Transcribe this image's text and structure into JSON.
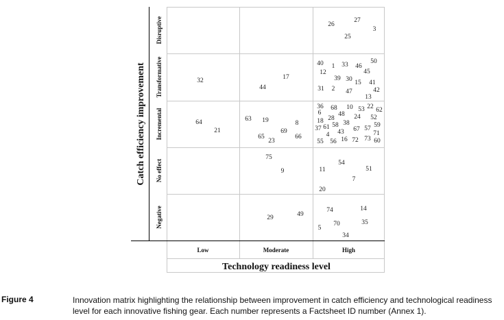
{
  "chart_data": {
    "type": "scatter",
    "ylabel": "Catch efficiency improvement",
    "xlabel": "Technology readiness level",
    "x_categories": [
      "Low",
      "Moderate",
      "High"
    ],
    "y_categories": [
      "Negative",
      "No effect",
      "Incremental",
      "Transformative",
      "Disruptive"
    ],
    "points": [
      {
        "id": "26",
        "x": "High",
        "y": "Disruptive"
      },
      {
        "id": "27",
        "x": "High",
        "y": "Disruptive"
      },
      {
        "id": "25",
        "x": "High",
        "y": "Disruptive"
      },
      {
        "id": "3",
        "x": "High",
        "y": "Disruptive"
      },
      {
        "id": "32",
        "x": "Low",
        "y": "Transformative"
      },
      {
        "id": "44",
        "x": "Moderate",
        "y": "Transformative"
      },
      {
        "id": "17",
        "x": "Moderate",
        "y": "Transformative"
      },
      {
        "id": "40",
        "x": "High",
        "y": "Transformative"
      },
      {
        "id": "1",
        "x": "High",
        "y": "Transformative"
      },
      {
        "id": "33",
        "x": "High",
        "y": "Transformative"
      },
      {
        "id": "46",
        "x": "High",
        "y": "Transformative"
      },
      {
        "id": "50",
        "x": "High",
        "y": "Transformative"
      },
      {
        "id": "12",
        "x": "High",
        "y": "Transformative"
      },
      {
        "id": "45",
        "x": "High",
        "y": "Transformative"
      },
      {
        "id": "39",
        "x": "High",
        "y": "Transformative"
      },
      {
        "id": "30",
        "x": "High",
        "y": "Transformative"
      },
      {
        "id": "15",
        "x": "High",
        "y": "Transformative"
      },
      {
        "id": "41",
        "x": "High",
        "y": "Transformative"
      },
      {
        "id": "31",
        "x": "High",
        "y": "Transformative"
      },
      {
        "id": "2",
        "x": "High",
        "y": "Transformative"
      },
      {
        "id": "47",
        "x": "High",
        "y": "Transformative"
      },
      {
        "id": "42",
        "x": "High",
        "y": "Transformative"
      },
      {
        "id": "13",
        "x": "High",
        "y": "Transformative"
      },
      {
        "id": "64",
        "x": "Low",
        "y": "Incremental"
      },
      {
        "id": "21",
        "x": "Low",
        "y": "Incremental"
      },
      {
        "id": "63",
        "x": "Moderate",
        "y": "Incremental"
      },
      {
        "id": "19",
        "x": "Moderate",
        "y": "Incremental"
      },
      {
        "id": "8",
        "x": "Moderate",
        "y": "Incremental"
      },
      {
        "id": "69",
        "x": "Moderate",
        "y": "Incremental"
      },
      {
        "id": "65",
        "x": "Moderate",
        "y": "Incremental"
      },
      {
        "id": "23",
        "x": "Moderate",
        "y": "Incremental"
      },
      {
        "id": "66",
        "x": "Moderate",
        "y": "Incremental"
      },
      {
        "id": "36",
        "x": "High",
        "y": "Incremental"
      },
      {
        "id": "68",
        "x": "High",
        "y": "Incremental"
      },
      {
        "id": "10",
        "x": "High",
        "y": "Incremental"
      },
      {
        "id": "53",
        "x": "High",
        "y": "Incremental"
      },
      {
        "id": "22",
        "x": "High",
        "y": "Incremental"
      },
      {
        "id": "62",
        "x": "High",
        "y": "Incremental"
      },
      {
        "id": "6",
        "x": "High",
        "y": "Incremental"
      },
      {
        "id": "48",
        "x": "High",
        "y": "Incremental"
      },
      {
        "id": "28",
        "x": "High",
        "y": "Incremental"
      },
      {
        "id": "24",
        "x": "High",
        "y": "Incremental"
      },
      {
        "id": "52",
        "x": "High",
        "y": "Incremental"
      },
      {
        "id": "18",
        "x": "High",
        "y": "Incremental"
      },
      {
        "id": "58",
        "x": "High",
        "y": "Incremental"
      },
      {
        "id": "38",
        "x": "High",
        "y": "Incremental"
      },
      {
        "id": "59",
        "x": "High",
        "y": "Incremental"
      },
      {
        "id": "37",
        "x": "High",
        "y": "Incremental"
      },
      {
        "id": "61",
        "x": "High",
        "y": "Incremental"
      },
      {
        "id": "43",
        "x": "High",
        "y": "Incremental"
      },
      {
        "id": "67",
        "x": "High",
        "y": "Incremental"
      },
      {
        "id": "57",
        "x": "High",
        "y": "Incremental"
      },
      {
        "id": "4",
        "x": "High",
        "y": "Incremental"
      },
      {
        "id": "71",
        "x": "High",
        "y": "Incremental"
      },
      {
        "id": "55",
        "x": "High",
        "y": "Incremental"
      },
      {
        "id": "56",
        "x": "High",
        "y": "Incremental"
      },
      {
        "id": "16",
        "x": "High",
        "y": "Incremental"
      },
      {
        "id": "72",
        "x": "High",
        "y": "Incremental"
      },
      {
        "id": "73",
        "x": "High",
        "y": "Incremental"
      },
      {
        "id": "60",
        "x": "High",
        "y": "Incremental"
      },
      {
        "id": "75",
        "x": "Moderate",
        "y": "No effect"
      },
      {
        "id": "9",
        "x": "Moderate",
        "y": "No effect"
      },
      {
        "id": "54",
        "x": "High",
        "y": "No effect"
      },
      {
        "id": "11",
        "x": "High",
        "y": "No effect"
      },
      {
        "id": "51",
        "x": "High",
        "y": "No effect"
      },
      {
        "id": "7",
        "x": "High",
        "y": "No effect"
      },
      {
        "id": "20",
        "x": "High",
        "y": "No effect"
      },
      {
        "id": "29",
        "x": "Moderate",
        "y": "Negative"
      },
      {
        "id": "49",
        "x": "Moderate",
        "y": "Negative"
      },
      {
        "id": "74",
        "x": "High",
        "y": "Negative"
      },
      {
        "id": "14",
        "x": "High",
        "y": "Negative"
      },
      {
        "id": "5",
        "x": "High",
        "y": "Negative"
      },
      {
        "id": "70",
        "x": "High",
        "y": "Negative"
      },
      {
        "id": "35",
        "x": "High",
        "y": "Negative"
      },
      {
        "id": "34",
        "x": "High",
        "y": "Negative"
      }
    ]
  },
  "caption": {
    "label": "Figure 4",
    "text": "Innovation matrix highlighting the relationship between improvement in catch efficiency and technological readiness level for each innovative fishing gear. Each number represents a Factsheet ID number (Annex 1)."
  }
}
